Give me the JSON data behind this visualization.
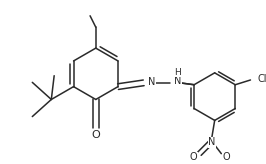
{
  "bg_color": "#ffffff",
  "line_color": "#2a2a2a",
  "line_width": 1.1,
  "font_size": 7.0,
  "fig_width": 2.66,
  "fig_height": 1.64,
  "dpi": 100,
  "xlim": [
    0.0,
    2.66
  ],
  "ylim": [
    0.0,
    1.64
  ]
}
